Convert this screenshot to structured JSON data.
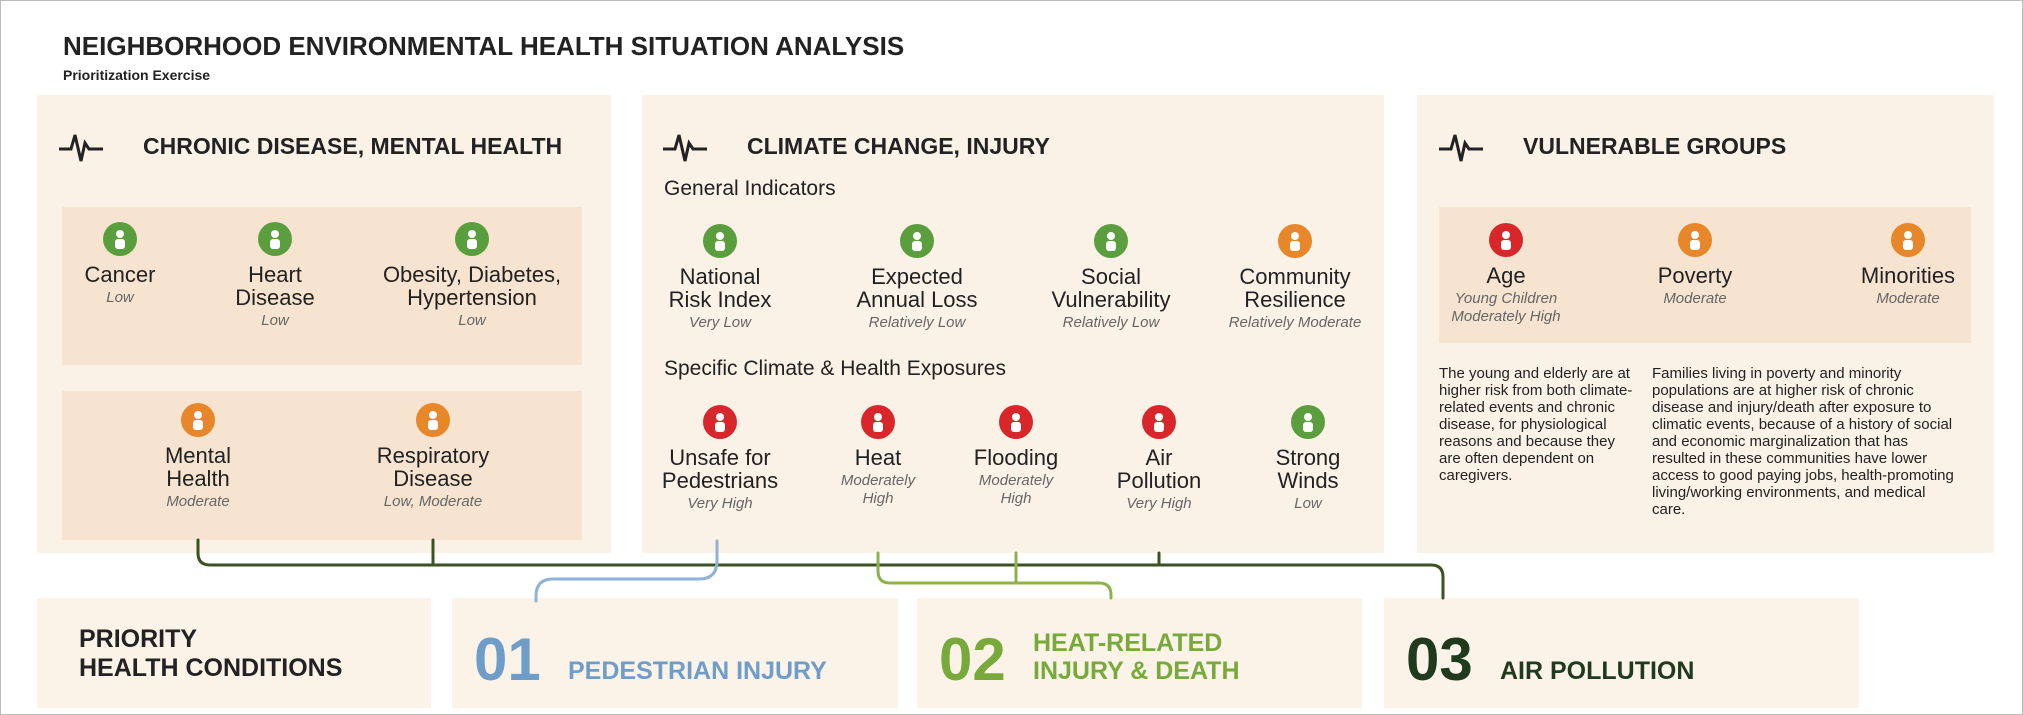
{
  "header": {
    "title": "NEIGHBORHOOD ENVIRONMENTAL HEALTH SITUATION ANALYSIS",
    "subtitle": "Prioritization Exercise"
  },
  "panels": [
    {
      "title": "CHRONIC DISEASE, MENTAL HEALTH",
      "groups": [
        {
          "items": [
            {
              "label": "Cancer",
              "rating": "Low"
            },
            {
              "label": "Heart\nDisease",
              "rating": "Low"
            },
            {
              "label": "Obesity, Diabetes,\nHypertension",
              "rating": "Low"
            }
          ]
        },
        {
          "items": [
            {
              "label": "Mental\nHealth",
              "rating": "Moderate"
            },
            {
              "label": "Respiratory\nDisease",
              "rating": "Low, Moderate"
            }
          ]
        }
      ]
    },
    {
      "title": "CLIMATE CHANGE, INJURY",
      "groups": [
        {
          "label": "General Indicators",
          "items": [
            {
              "label": "National\nRisk Index",
              "rating": "Very Low"
            },
            {
              "label": "Expected\nAnnual Loss",
              "rating": "Relatively Low"
            },
            {
              "label": "Social\nVulnerability",
              "rating": "Relatively Low"
            },
            {
              "label": "Community\nResilience",
              "rating": "Relatively Moderate"
            }
          ]
        },
        {
          "label": "Specific Climate & Health Exposures",
          "items": [
            {
              "label": "Unsafe for\nPedestrians",
              "rating": "Very High"
            },
            {
              "label": "Heat",
              "rating": "Moderately\nHigh"
            },
            {
              "label": "Flooding",
              "rating": "Moderately\nHigh"
            },
            {
              "label": "Air\nPollution",
              "rating": "Very High"
            },
            {
              "label": "Strong\nWinds",
              "rating": "Low"
            }
          ]
        }
      ]
    },
    {
      "title": "VULNERABLE GROUPS",
      "groups": [
        {
          "items": [
            {
              "label": "Age",
              "rating": "Young Children\nModerately High"
            },
            {
              "label": "Poverty",
              "rating": "Moderate"
            },
            {
              "label": "Minorities",
              "rating": "Moderate"
            }
          ]
        }
      ],
      "notes": [
        "The young and elderly are at higher risk from both climate-related events and chronic disease, for physiological reasons and because they are often dependent on caregivers.",
        "Families living in poverty and minority populations are at higher risk of chronic disease and injury/death after exposure to climatic events, because of a history of social and economic marginalization that has resulted in these communities have lower access to good paying jobs, health-promoting living/working environments, and medical care."
      ]
    }
  ],
  "priorities": {
    "label": "PRIORITY\nHEALTH CONDITIONS",
    "items": [
      {
        "number": "01",
        "name": "PEDESTRIAN INJURY"
      },
      {
        "number": "02",
        "name": "HEAT-RELATED\nINJURY & DEATH"
      },
      {
        "number": "03",
        "name": "AIR POLLUTION"
      }
    ]
  }
}
